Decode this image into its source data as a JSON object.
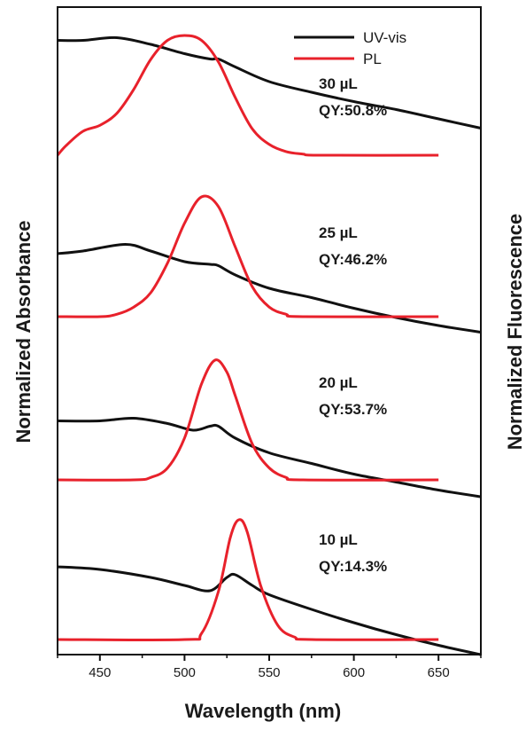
{
  "chart_data": {
    "type": "line",
    "xlabel": "Wavelength (nm)",
    "ylabel_left": "Normalized Absorbance",
    "ylabel_right": "Normalized Fluorescence",
    "xlim": [
      425,
      675
    ],
    "xticks": [
      450,
      500,
      550,
      600,
      650
    ],
    "grid": false,
    "legend": {
      "position": "top-right",
      "items": [
        {
          "label": "UV-vis",
          "color": "#111111"
        },
        {
          "label": "PL",
          "color": "#e8212b"
        }
      ]
    },
    "colors": {
      "uvvis": "#111111",
      "pl": "#e8212b"
    },
    "panels": [
      {
        "amount": "30 µL",
        "qy": "QY:50.8%",
        "uvvis": {
          "x": [
            425,
            440,
            460,
            480,
            500,
            515,
            520,
            530,
            550,
            575,
            600,
            625,
            650,
            675
          ],
          "y": [
            0.93,
            0.93,
            0.95,
            0.9,
            0.83,
            0.79,
            0.79,
            0.73,
            0.62,
            0.54,
            0.47,
            0.41,
            0.34,
            0.27
          ]
        },
        "pl": {
          "x": [
            425,
            430,
            440,
            450,
            460,
            470,
            480,
            490,
            500,
            510,
            520,
            530,
            540,
            550,
            560,
            570,
            580,
            650
          ],
          "y": [
            0.0,
            0.08,
            0.2,
            0.25,
            0.35,
            0.55,
            0.8,
            0.96,
            1.0,
            0.96,
            0.78,
            0.48,
            0.22,
            0.09,
            0.03,
            0.01,
            0.0,
            0.0
          ]
        }
      },
      {
        "amount": "25 µL",
        "qy": "QY:46.2%",
        "uvvis": {
          "x": [
            425,
            440,
            465,
            480,
            500,
            515,
            520,
            530,
            550,
            575,
            600,
            625,
            650,
            675
          ],
          "y": [
            0.58,
            0.6,
            0.65,
            0.6,
            0.52,
            0.5,
            0.49,
            0.42,
            0.32,
            0.25,
            0.17,
            0.1,
            0.04,
            -0.01
          ]
        },
        "pl": {
          "x": [
            425,
            450,
            460,
            470,
            480,
            490,
            500,
            510,
            520,
            530,
            540,
            550,
            560,
            570,
            650
          ],
          "y": [
            0.0,
            0.0,
            0.02,
            0.08,
            0.2,
            0.45,
            0.78,
            1.0,
            0.92,
            0.58,
            0.25,
            0.08,
            0.02,
            0.0,
            0.0
          ]
        }
      },
      {
        "amount": "20 µL",
        "qy": "QY:53.7%",
        "uvvis": {
          "x": [
            425,
            450,
            470,
            490,
            505,
            515,
            520,
            530,
            550,
            575,
            600,
            625,
            650,
            675
          ],
          "y": [
            0.57,
            0.57,
            0.59,
            0.55,
            0.5,
            0.53,
            0.53,
            0.44,
            0.33,
            0.25,
            0.17,
            0.11,
            0.05,
            0.0
          ]
        },
        "pl": {
          "x": [
            425,
            470,
            480,
            490,
            500,
            510,
            518,
            525,
            530,
            540,
            550,
            560,
            570,
            650
          ],
          "y": [
            0.0,
            0.0,
            0.02,
            0.1,
            0.35,
            0.8,
            1.0,
            0.9,
            0.7,
            0.3,
            0.1,
            0.02,
            0.0,
            0.0
          ]
        }
      },
      {
        "amount": "10 µL",
        "qy": "QY:14.3%",
        "uvvis": {
          "x": [
            425,
            450,
            480,
            500,
            515,
            525,
            530,
            540,
            550,
            575,
            600,
            625,
            650,
            675
          ],
          "y": [
            0.66,
            0.64,
            0.58,
            0.52,
            0.48,
            0.58,
            0.6,
            0.52,
            0.45,
            0.34,
            0.24,
            0.15,
            0.07,
            0.0
          ]
        },
        "pl": {
          "x": [
            425,
            500,
            510,
            520,
            527,
            532,
            537,
            545,
            555,
            565,
            575,
            650
          ],
          "y": [
            0.0,
            0.0,
            0.05,
            0.4,
            0.85,
            1.0,
            0.9,
            0.45,
            0.12,
            0.02,
            0.0,
            0.0
          ]
        }
      }
    ]
  }
}
